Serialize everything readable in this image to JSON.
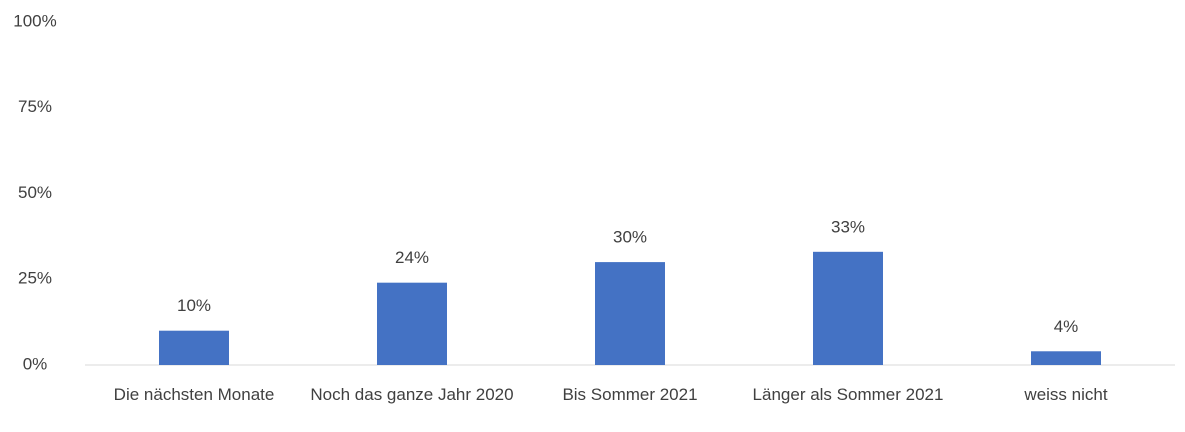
{
  "chart_data": {
    "type": "bar",
    "categories": [
      "Die nächsten Monate",
      "Noch das ganze Jahr 2020",
      "Bis Sommer 2021",
      "Länger als Sommer 2021",
      "weiss nicht"
    ],
    "values": [
      10,
      24,
      30,
      33,
      4
    ],
    "value_labels": [
      "10%",
      "24%",
      "30%",
      "33%",
      "4%"
    ],
    "color": "#4472c4",
    "ylim": [
      0,
      100
    ],
    "yticks": [
      {
        "value": 0,
        "label": "0%"
      },
      {
        "value": 25,
        "label": "25%"
      },
      {
        "value": 50,
        "label": "50%"
      },
      {
        "value": 75,
        "label": "75%"
      },
      {
        "value": 100,
        "label": "100%"
      }
    ],
    "grid": false
  }
}
